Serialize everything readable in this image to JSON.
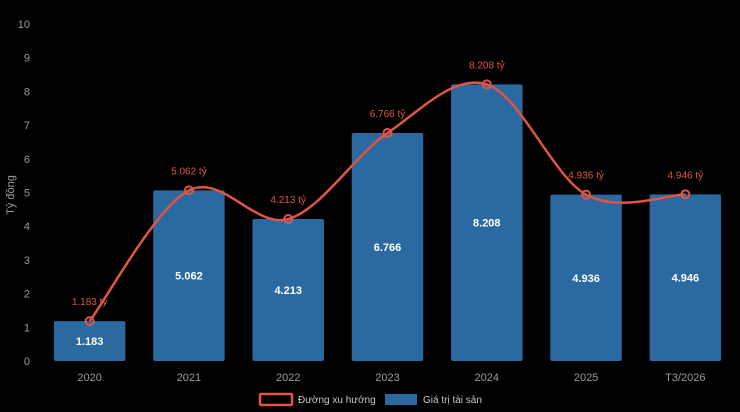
{
  "chart_data": {
    "type": "bar",
    "categories": [
      "2020",
      "2021",
      "2022",
      "2023",
      "2024",
      "2025",
      "T3/2026"
    ],
    "series": [
      {
        "name": "Giá trị tài sản",
        "type": "bar",
        "values": [
          1.183,
          5.062,
          4.213,
          6.766,
          8.208,
          4.936,
          4.946
        ],
        "labels": [
          "1.183",
          "5.062",
          "4.213",
          "6.766",
          "8.208",
          "4.936",
          "4.946"
        ],
        "color": "#2a6aa0"
      },
      {
        "name": "Đường xu hướng",
        "type": "line",
        "values": [
          1.183,
          5.062,
          4.213,
          6.766,
          8.208,
          4.936,
          4.946
        ],
        "labels": [
          "1.183 tỷ",
          "5.062 tỷ",
          "4.213 tỷ",
          "6.766 tỷ",
          "8.208 tỷ",
          "4.936 tỷ",
          "4.946 tỷ"
        ],
        "color": "#e05545"
      }
    ],
    "ylabel": "Tỷ đồng",
    "ylim": [
      0,
      10
    ],
    "yticks": [
      "0",
      "1",
      "2",
      "3",
      "4",
      "5",
      "6",
      "7",
      "8",
      "9",
      "10"
    ],
    "legend": {
      "position": "bottom",
      "items": [
        "Đường xu hướng",
        "Giá trị tài sản"
      ]
    }
  }
}
